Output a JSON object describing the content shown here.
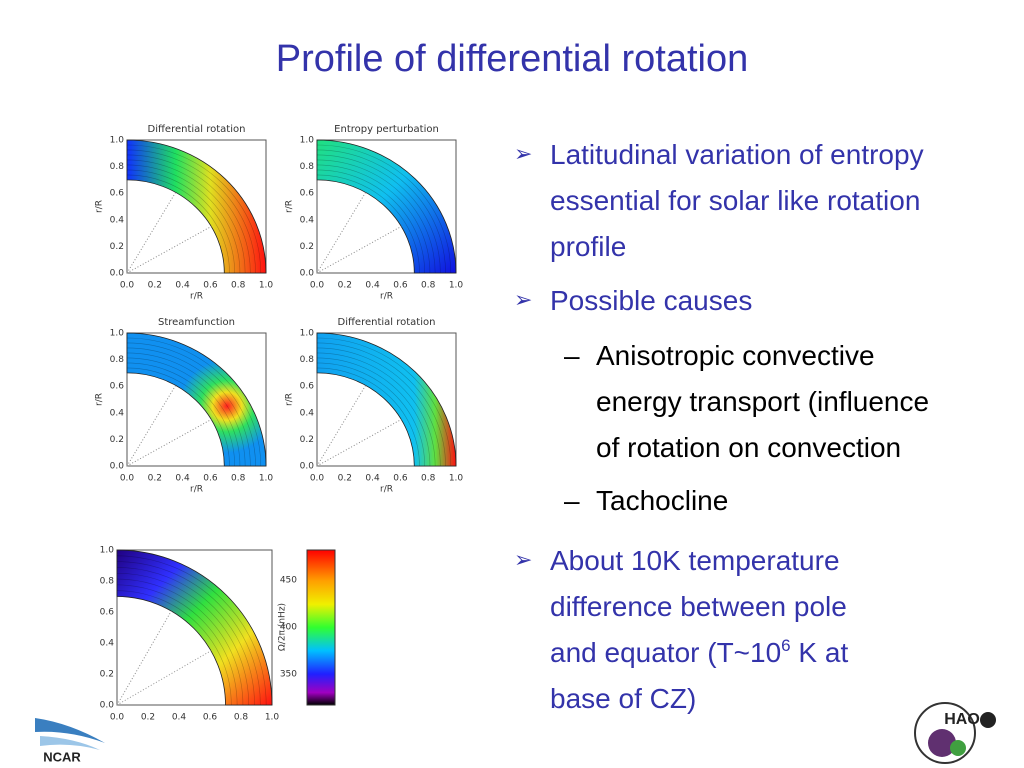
{
  "title": "Profile of differential rotation",
  "panels": [
    {
      "title": "Differential rotation",
      "xlabel": "r/R",
      "ylabel": "r/R",
      "xticks": [
        "0.0",
        "0.2",
        "0.4",
        "0.6",
        "0.8",
        "1.0"
      ],
      "yticks": [
        "0.0",
        "0.2",
        "0.4",
        "0.6",
        "0.8",
        "1.0"
      ]
    },
    {
      "title": "Entropy perturbation",
      "xlabel": "r/R",
      "ylabel": "r/R",
      "xticks": [
        "0.0",
        "0.2",
        "0.4",
        "0.6",
        "0.8",
        "1.0"
      ],
      "yticks": [
        "0.0",
        "0.2",
        "0.4",
        "0.6",
        "0.8",
        "1.0"
      ]
    },
    {
      "title": "Streamfunction",
      "xlabel": "r/R",
      "ylabel": "r/R",
      "xticks": [
        "0.0",
        "0.2",
        "0.4",
        "0.6",
        "0.8",
        "1.0"
      ],
      "yticks": [
        "0.0",
        "0.2",
        "0.4",
        "0.6",
        "0.8",
        "1.0"
      ]
    },
    {
      "title": "Differential rotation",
      "xlabel": "r/R",
      "ylabel": "r/R",
      "xticks": [
        "0.0",
        "0.2",
        "0.4",
        "0.6",
        "0.8",
        "1.0"
      ],
      "yticks": [
        "0.0",
        "0.2",
        "0.4",
        "0.6",
        "0.8",
        "1.0"
      ]
    }
  ],
  "bottom_plot": {
    "xticks": [
      "0.0",
      "0.2",
      "0.4",
      "0.6",
      "0.8",
      "1.0"
    ],
    "yticks": [
      "0.0",
      "0.2",
      "0.4",
      "0.6",
      "0.8",
      "1.0"
    ]
  },
  "colorbar": {
    "label": "Ω/2π (nHz)",
    "ticks": [
      450,
      400,
      350
    ]
  },
  "bullets": [
    {
      "level": 1,
      "lines": [
        "Latitudinal variation of entropy",
        "essential for solar like rotation",
        "profile"
      ]
    },
    {
      "level": 1,
      "lines": [
        "Possible causes"
      ]
    },
    {
      "level": 2,
      "lines": [
        "Anisotropic convective",
        "energy transport (influence",
        "of rotation on convection"
      ]
    },
    {
      "level": 2,
      "lines": [
        "Tachocline"
      ]
    },
    {
      "level": 1,
      "lines": [
        "About 10K temperature",
        "difference between pole",
        "and equator (T~10",
        "base of CZ)"
      ],
      "sup": "6",
      "after_sup": " K at"
    }
  ],
  "logos": {
    "left": "NCAR",
    "right": "HAO"
  }
}
